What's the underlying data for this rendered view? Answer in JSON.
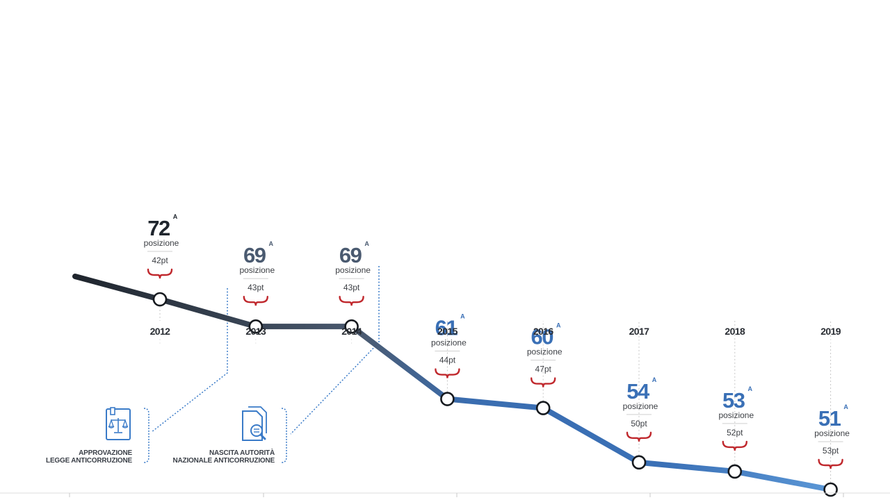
{
  "chart_data": {
    "type": "line",
    "categories": [
      "2012",
      "2013",
      "2014",
      "2015",
      "2016",
      "2017",
      "2018",
      "2019"
    ],
    "series": [
      {
        "ranks": [
          72,
          69,
          69,
          61,
          60,
          54,
          53,
          51
        ],
        "values": [
          42,
          43,
          43,
          44,
          47,
          50,
          52,
          53
        ],
        "rank_suffix": "A",
        "rank_label": "posizione",
        "value_suffix": "pt"
      }
    ],
    "colors": {
      "dark": "#1f252d",
      "mid": "#4a5a70",
      "blue": "#3a70b6",
      "light_blue": "#5b97d6",
      "bracket": "#c0282d",
      "guide": "#c7c7c7",
      "annotation": "#3a7bc8"
    }
  },
  "annotations": [
    {
      "label_line1": "APPROVAZIONE",
      "label_line2": "LEGGE ANTICORRUZIONE",
      "icon": "scales-document-icon"
    },
    {
      "label_line1": "NASCITA AUTORITÀ",
      "label_line2": "NAZIONALE ANTICORRUZIONE",
      "icon": "document-search-icon"
    }
  ]
}
